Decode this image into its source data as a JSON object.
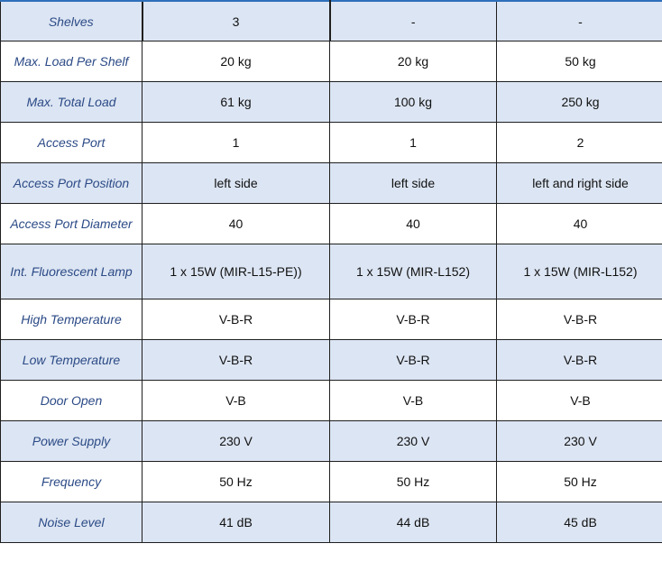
{
  "table": {
    "rows": [
      {
        "label": "Shelves",
        "values": [
          "3",
          "-",
          "-"
        ],
        "shaded": true
      },
      {
        "label": "Max. Load Per Shelf",
        "values": [
          "20 kg",
          "20 kg",
          "50 kg"
        ],
        "shaded": false
      },
      {
        "label": "Max. Total Load",
        "values": [
          "61 kg",
          "100 kg",
          "250 kg"
        ],
        "shaded": true
      },
      {
        "label": "Access Port",
        "values": [
          "1",
          "1",
          "2"
        ],
        "shaded": false
      },
      {
        "label": "Access Port Position",
        "values": [
          "left side",
          "left side",
          "left and right side"
        ],
        "shaded": true
      },
      {
        "label": "Access Port Diameter",
        "values": [
          "40",
          "40",
          "40"
        ],
        "shaded": false
      },
      {
        "label": "Int.  Fluorescent Lamp",
        "values": [
          "1 x 15W (MIR-L15-PE))",
          "1 x 15W (MIR-L152)",
          "1 x 15W (MIR-L152)"
        ],
        "shaded": true
      },
      {
        "label": "High Temperature",
        "values": [
          "V-B-R",
          "V-B-R",
          "V-B-R"
        ],
        "shaded": false
      },
      {
        "label": "Low Temperature",
        "values": [
          "V-B-R",
          "V-B-R",
          "V-B-R"
        ],
        "shaded": true
      },
      {
        "label": "Door Open",
        "values": [
          "V-B",
          "V-B",
          "V-B"
        ],
        "shaded": false
      },
      {
        "label": "Power Supply",
        "values": [
          "230 V",
          "230 V",
          "230 V"
        ],
        "shaded": true
      },
      {
        "label": "Frequency",
        "values": [
          "50 Hz",
          "50 Hz",
          "50 Hz"
        ],
        "shaded": false
      },
      {
        "label": "Noise Level",
        "values": [
          "41 dB",
          "44 dB",
          "45 dB"
        ],
        "shaded": true
      }
    ]
  },
  "colors": {
    "label_text": "#2b4a86",
    "shaded_row": "#dce5f3",
    "top_rule": "#2f6fba"
  }
}
